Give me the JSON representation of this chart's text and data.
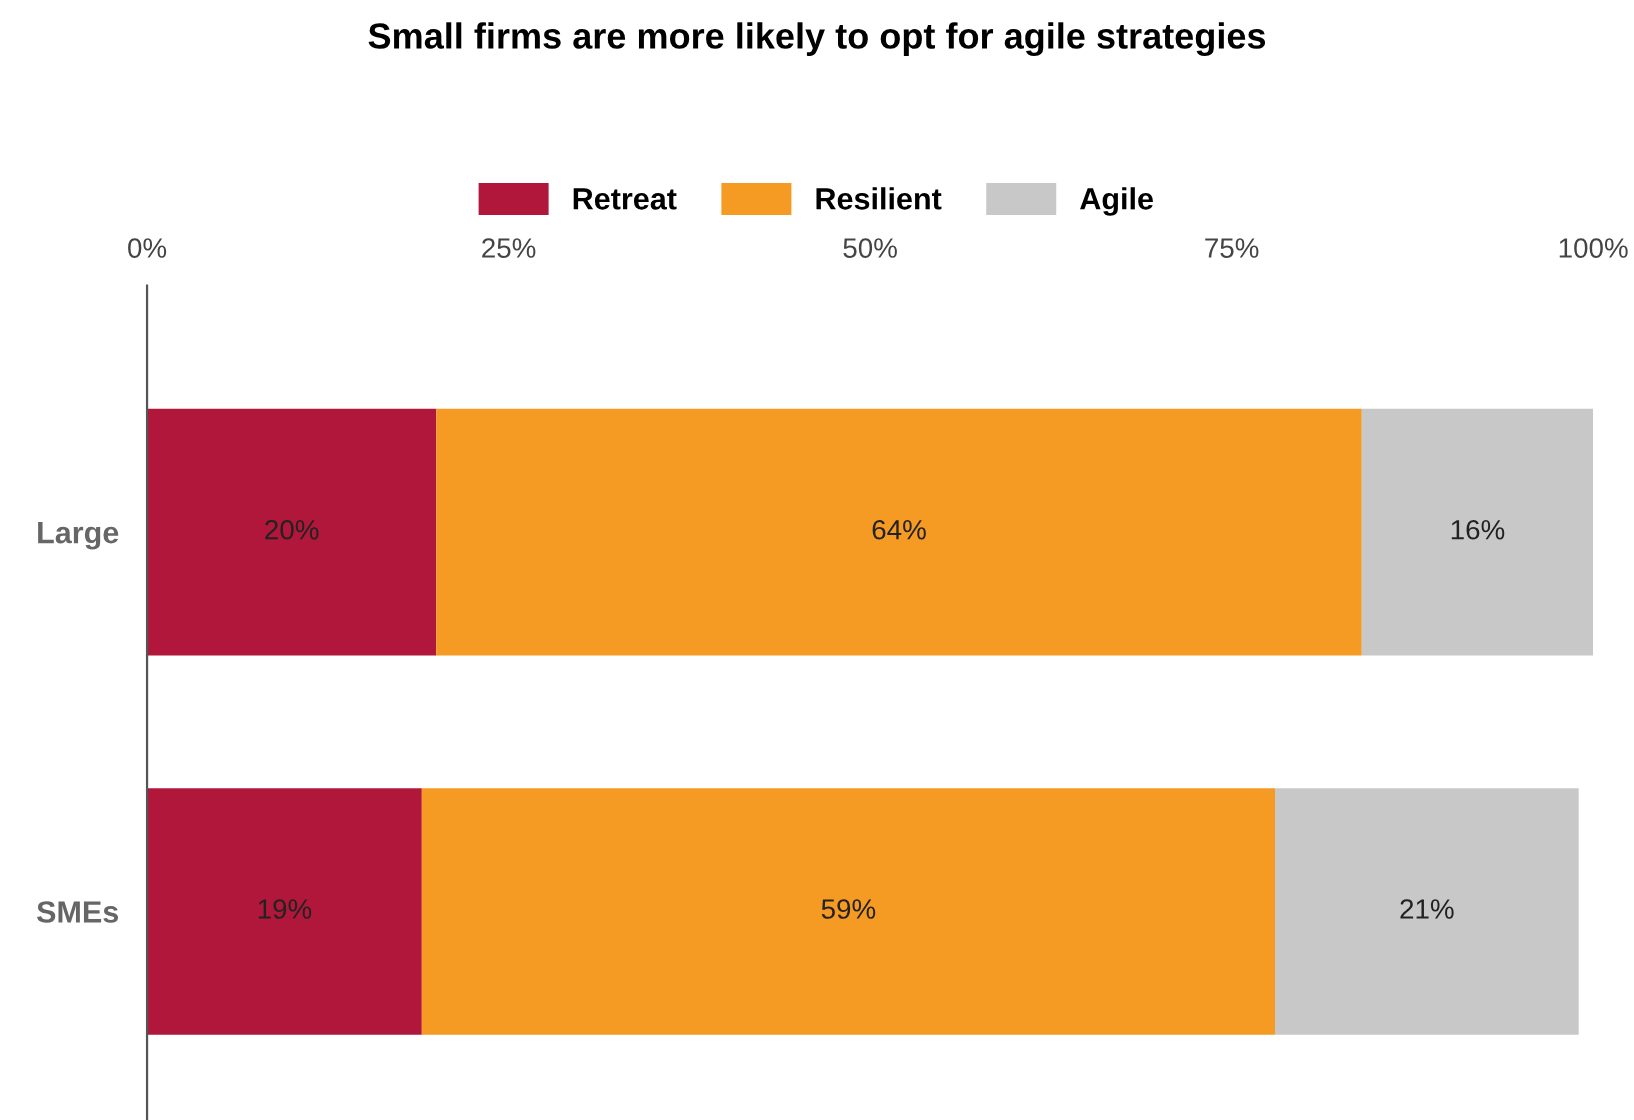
{
  "chart_data": {
    "type": "bar",
    "title": "Small firms are more likely to opt for agile strategies",
    "orientation": "horizontal",
    "stacked": true,
    "categories": [
      "Large",
      "SMEs"
    ],
    "series": [
      {
        "name": "Retreat",
        "color": "#b0173a",
        "values": [
          20,
          19
        ],
        "value_labels": [
          "20%",
          "19%"
        ]
      },
      {
        "name": "Resilient",
        "color": "#f59a23",
        "values": [
          64,
          59
        ],
        "value_labels": [
          "64%",
          "59%"
        ]
      },
      {
        "name": "Agile",
        "color": "#c8c8c8",
        "values": [
          16,
          21
        ],
        "value_labels": [
          "16%",
          "21%"
        ]
      }
    ],
    "xlim": [
      0,
      100
    ],
    "xticks": [
      {
        "value": 0,
        "label": "0%"
      },
      {
        "value": 25,
        "label": "25%"
      },
      {
        "value": 50,
        "label": "50%"
      },
      {
        "value": 75,
        "label": "75%"
      },
      {
        "value": 100,
        "label": "100%"
      }
    ],
    "grid": false,
    "legend": "top"
  }
}
